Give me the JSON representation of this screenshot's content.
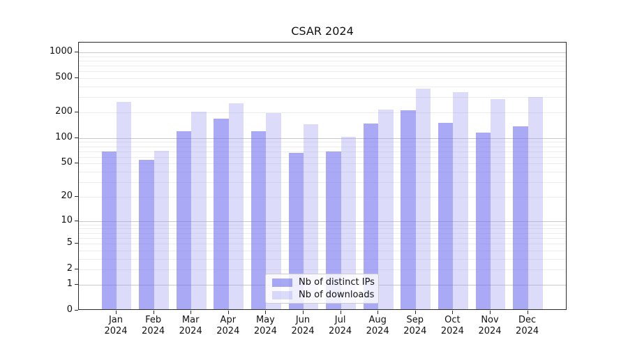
{
  "title": "CSAR 2024",
  "chart_data": {
    "type": "bar",
    "title": "CSAR 2024",
    "categories": [
      "Jan 2024",
      "Feb 2024",
      "Mar 2024",
      "Apr 2024",
      "May 2024",
      "Jun 2024",
      "Jul 2024",
      "Aug 2024",
      "Sep 2024",
      "Oct 2024",
      "Nov 2024",
      "Dec 2024"
    ],
    "series": [
      {
        "name": "Nb of distinct IPs",
        "color": "#7070f0",
        "alpha": 0.6,
        "rendered_color": "#a9a9f6",
        "values": [
          70,
          55,
          121,
          170,
          121,
          67,
          70,
          147,
          212,
          150,
          117,
          137
        ]
      },
      {
        "name": "Nb of downloads",
        "color": "#9b9bf1",
        "alpha": 0.35,
        "rendered_color": "#dcdcfa",
        "values": [
          265,
          71,
          205,
          257,
          198,
          145,
          103,
          215,
          380,
          344,
          283,
          303
        ]
      }
    ],
    "xlabel": "",
    "ylabel": "",
    "yscale": "log1p",
    "ylim": [
      0,
      1300
    ],
    "yticks": [
      0,
      1,
      2,
      5,
      10,
      20,
      50,
      100,
      200,
      500,
      1000
    ],
    "grid": "horizontal, major and minor",
    "legend_position": "lower center"
  },
  "colors": {
    "background": "#ffffff",
    "spine": "#2a2a2a",
    "grid_major": "#c9c9c9",
    "grid_minor": "#ededed",
    "text": "#111111"
  }
}
